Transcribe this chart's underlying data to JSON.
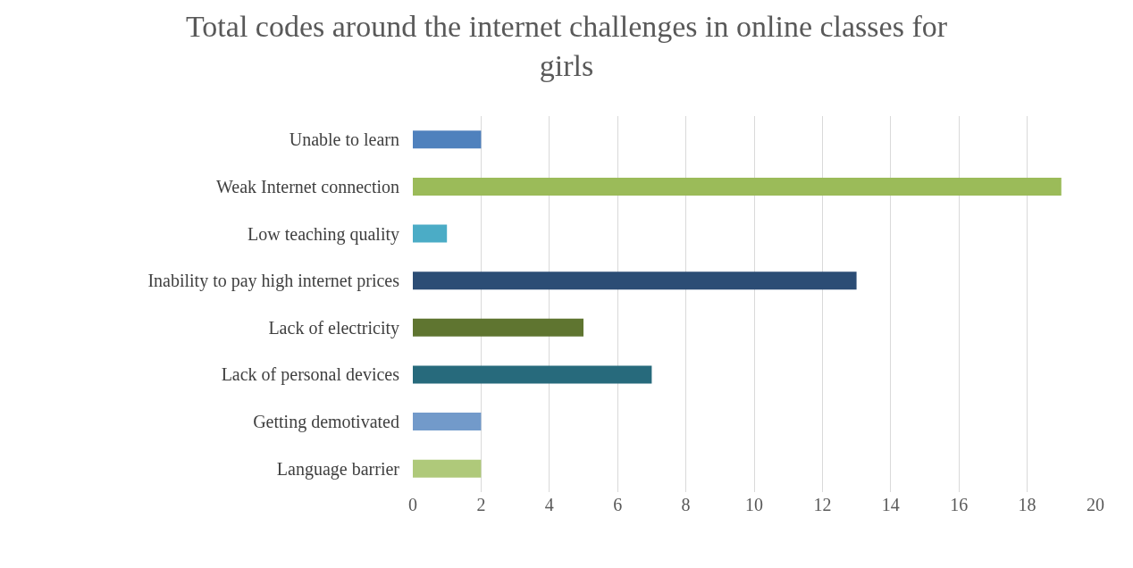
{
  "chart_data": {
    "type": "bar",
    "orientation": "horizontal",
    "title": "Total codes around the internet challenges in online classes for girls",
    "categories": [
      "Unable to learn",
      "Weak Internet connection",
      "Low teaching quality",
      "Inability to pay high internet prices",
      "Lack of electricity",
      "Lack of personal devices",
      "Getting demotivated",
      "Language barrier"
    ],
    "values": [
      2,
      19,
      1,
      13,
      5,
      7,
      2,
      2
    ],
    "colors": [
      "#4f81bd",
      "#9bbb59",
      "#4bacc6",
      "#2c4d75",
      "#5f7530",
      "#276a7c",
      "#729aca",
      "#afc97a"
    ],
    "xlim": [
      0,
      20
    ],
    "xticks": [
      0,
      2,
      4,
      6,
      8,
      10,
      12,
      14,
      16,
      18,
      20
    ],
    "grid": "x"
  }
}
